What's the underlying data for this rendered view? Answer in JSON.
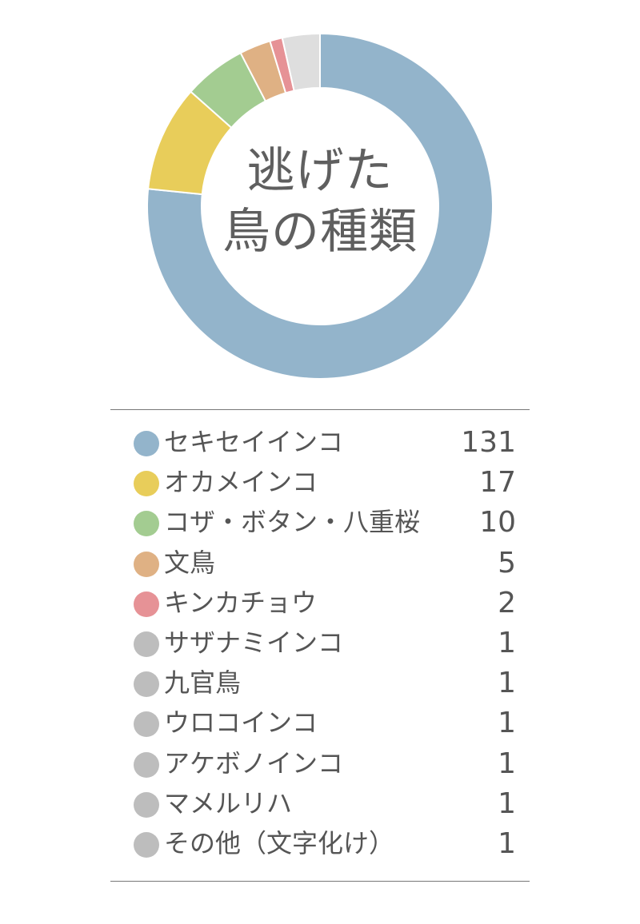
{
  "chart_data": {
    "type": "pie",
    "title": [
      "逃げた",
      "鳥の種類"
    ],
    "categories": [
      "セキセイインコ",
      "オカメインコ",
      "コザ・ボタン・八重桜",
      "文鳥",
      "キンカチョウ",
      "サザナミインコ",
      "九官鳥",
      "ウロコインコ",
      "アケボノインコ",
      "マメルリハ",
      "その他（文字化け）"
    ],
    "values": [
      131,
      17,
      10,
      5,
      2,
      1,
      1,
      1,
      1,
      1,
      1
    ],
    "colors": [
      "#93b4cb",
      "#e8cd5a",
      "#a3cc91",
      "#dfb184",
      "#e69296",
      "#dedede",
      "#dedede",
      "#dedede",
      "#dedede",
      "#dedede",
      "#dedede"
    ],
    "legend_colors": [
      "#93b4cb",
      "#e8cd5a",
      "#a3cc91",
      "#dfb184",
      "#e69296",
      "#bdbdbd",
      "#bdbdbd",
      "#bdbdbd",
      "#bdbdbd",
      "#bdbdbd",
      "#bdbdbd"
    ],
    "donut": true,
    "legend_position": "bottom"
  }
}
